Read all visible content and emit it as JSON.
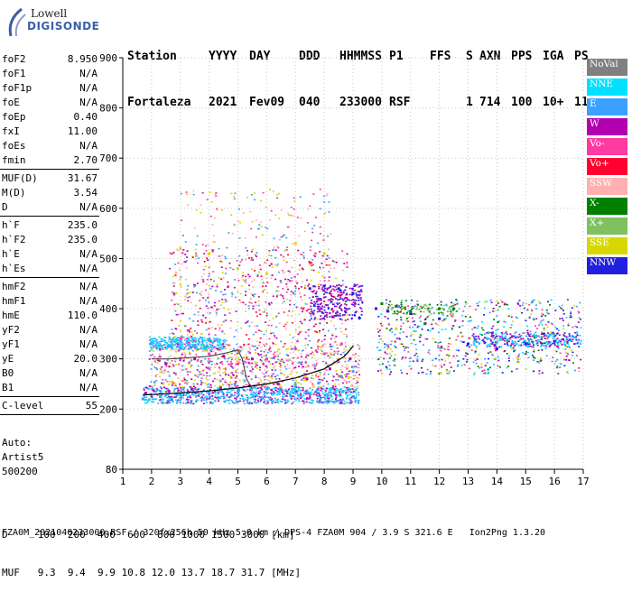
{
  "logo": {
    "top": "Lowell",
    "bottom": "DIGISONDE"
  },
  "header": {
    "labels": [
      "Station",
      "YYYY",
      "DAY",
      "DDD",
      "HHMMSS",
      "P1",
      "FFS",
      "S",
      "AXN",
      "PPS",
      "IGA",
      "PS"
    ],
    "values": [
      "Fortaleza",
      "2021",
      "Fev09",
      "040",
      "233000",
      "RSF",
      "",
      "1",
      "714",
      "100",
      "10+",
      "11"
    ]
  },
  "params_group1": [
    {
      "name": "foF2",
      "value": "8.950"
    },
    {
      "name": "foF1",
      "value": "N/A"
    },
    {
      "name": "foF1p",
      "value": "N/A"
    },
    {
      "name": "foE",
      "value": "N/A"
    },
    {
      "name": "foEp",
      "value": "0.40"
    },
    {
      "name": "fxI",
      "value": "11.00"
    },
    {
      "name": "foEs",
      "value": "N/A"
    },
    {
      "name": "fmin",
      "value": "2.70"
    }
  ],
  "params_group2": [
    {
      "name": "MUF(D)",
      "value": "31.67"
    },
    {
      "name": "M(D)",
      "value": "3.54"
    },
    {
      "name": "D",
      "value": "N/A"
    }
  ],
  "params_group3": [
    {
      "name": "h`F",
      "value": "235.0"
    },
    {
      "name": "h`F2",
      "value": "235.0"
    },
    {
      "name": "h`E",
      "value": "N/A"
    },
    {
      "name": "h`Es",
      "value": "N/A"
    }
  ],
  "params_group4": [
    {
      "name": "hmF2",
      "value": "N/A"
    },
    {
      "name": "hmF1",
      "value": "N/A"
    },
    {
      "name": "hmE",
      "value": "110.0"
    },
    {
      "name": "yF2",
      "value": "N/A"
    },
    {
      "name": "yF1",
      "value": "N/A"
    },
    {
      "name": "yE",
      "value": "20.0"
    },
    {
      "name": "B0",
      "value": "N/A"
    },
    {
      "name": "B1",
      "value": "N/A"
    }
  ],
  "params_group5": [
    {
      "name": "C-level",
      "value": "55"
    }
  ],
  "auto": {
    "line1": "Auto:",
    "line2": "Artist5",
    "line3": "500200"
  },
  "legend": [
    {
      "label": "NoVal",
      "color": "#808080"
    },
    {
      "label": "NNE",
      "color": "#00e0ff"
    },
    {
      "label": "E",
      "color": "#3ba0ff"
    },
    {
      "label": "W",
      "color": "#b000b0"
    },
    {
      "label": "Vo-",
      "color": "#ff3aa0"
    },
    {
      "label": "Vo+",
      "color": "#ff0030"
    },
    {
      "label": "SSW",
      "color": "#ffb0b0"
    },
    {
      "label": "X-",
      "color": "#008000"
    },
    {
      "label": "X+",
      "color": "#80c060"
    },
    {
      "label": "SSE",
      "color": "#d8d800"
    },
    {
      "label": "NNW",
      "color": "#2020e0"
    }
  ],
  "mufd_table": {
    "row1": "D     100  200  400  600  800 1000 1500 3000 [km]",
    "row2": "MUF   9.3  9.4  9.9 10.8 12.0 13.7 18.7 31.7 [MHz]"
  },
  "footer": "FZA0M_2021040233000.RSF / 320fx256h 50 kHz 5.0 km / DPS-4 FZA0M 904 / 3.9 S 321.6 E   Ion2Png 1.3.20",
  "chart_data": {
    "type": "scatter",
    "xlabel": "",
    "ylabel": "",
    "xlim": [
      1,
      17
    ],
    "ylim": [
      80,
      900
    ],
    "x_ticks": [
      1,
      2,
      3,
      4,
      5,
      6,
      7,
      8,
      9,
      10,
      11,
      12,
      13,
      14,
      15,
      16,
      17
    ],
    "y_ticks": [
      80,
      200,
      300,
      400,
      500,
      600,
      700,
      800,
      900
    ],
    "grid": "dotted",
    "series": [
      {
        "color": "#3ba0ff",
        "points": [
          [
            1.7,
            220
          ],
          [
            2.3,
            225
          ],
          [
            3.0,
            228
          ],
          [
            4.0,
            232
          ],
          [
            5.0,
            236
          ],
          [
            6.0,
            240
          ],
          [
            7.0,
            246
          ],
          [
            7.8,
            252
          ],
          [
            8.6,
            265
          ],
          [
            9.0,
            275
          ],
          [
            2.0,
            330
          ],
          [
            3.0,
            335
          ],
          [
            4.0,
            338
          ]
        ]
      },
      {
        "color": "#b000b0",
        "points": [
          [
            1.8,
            232
          ],
          [
            2.6,
            236
          ],
          [
            3.4,
            240
          ],
          [
            4.4,
            242
          ],
          [
            5.4,
            246
          ],
          [
            6.4,
            250
          ],
          [
            7.4,
            260
          ],
          [
            8.2,
            280
          ],
          [
            8.9,
            300
          ],
          [
            2.5,
            290
          ],
          [
            3.5,
            300
          ],
          [
            4.5,
            305
          ],
          [
            5.5,
            300
          ]
        ]
      },
      {
        "color": "#ff3aa0",
        "points": [
          [
            3.0,
            300
          ],
          [
            4.0,
            310
          ],
          [
            5.0,
            290
          ],
          [
            6.0,
            300
          ],
          [
            7.0,
            320
          ],
          [
            8.0,
            310
          ],
          [
            8.6,
            330
          ]
        ]
      },
      {
        "color": "#2020e0",
        "points": [
          [
            7.5,
            440
          ],
          [
            8.0,
            445
          ],
          [
            8.5,
            440
          ],
          [
            9.0,
            430
          ],
          [
            9.8,
            400
          ],
          [
            10.2,
            395
          ],
          [
            11.0,
            390
          ],
          [
            12.0,
            380
          ],
          [
            13.0,
            330
          ],
          [
            14.0,
            320
          ],
          [
            15.0,
            330
          ],
          [
            16.0,
            335
          ]
        ]
      },
      {
        "color": "#008000",
        "points": [
          [
            10.0,
            410
          ],
          [
            10.5,
            405
          ],
          [
            11.0,
            395
          ],
          [
            11.5,
            370
          ],
          [
            12.0,
            400
          ],
          [
            12.5,
            400
          ]
        ]
      },
      {
        "color": "#d8d800",
        "points": [
          [
            3.0,
            520
          ],
          [
            4.0,
            510
          ],
          [
            5.0,
            480
          ],
          [
            6.0,
            470
          ],
          [
            7.0,
            530
          ],
          [
            8.0,
            510
          ],
          [
            10.5,
            360
          ]
        ]
      }
    ]
  }
}
